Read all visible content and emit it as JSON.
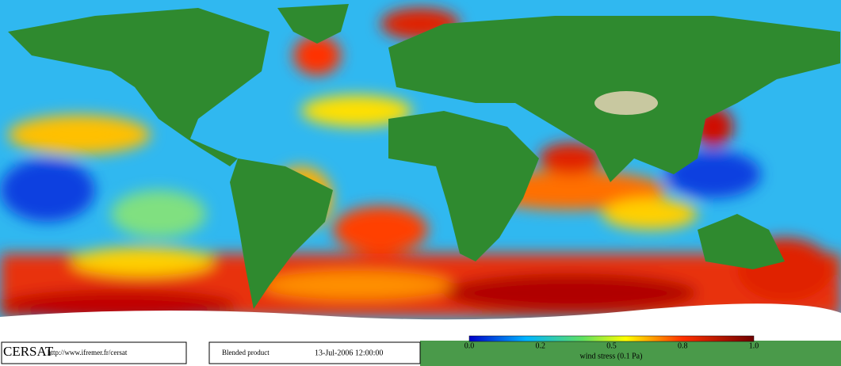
{
  "logo": "CERSAT",
  "url": "http://www.ifremer.fr/cersat",
  "product": "Blended product",
  "date": "13-Jul-2006 12:00:00",
  "colorbar": {
    "ticks": [
      "0.0",
      "0.2",
      "0.5",
      "0.8",
      "1.0"
    ],
    "label": "wind stress (0.1 Pa)"
  }
}
